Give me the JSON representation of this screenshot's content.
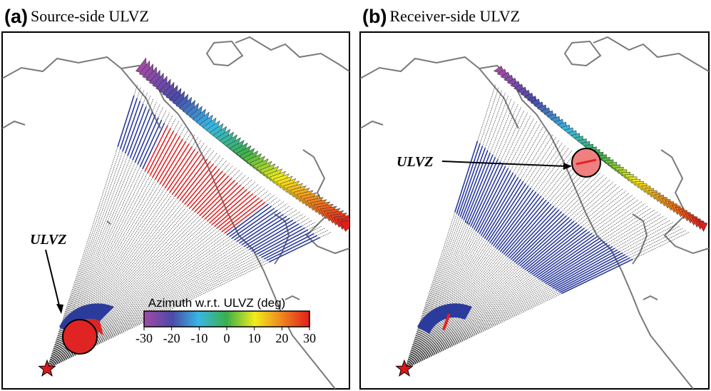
{
  "panels": [
    {
      "letter": "(a)",
      "caption": "Source-side ULVZ",
      "ulvz_label": "ULVZ"
    },
    {
      "letter": "(b)",
      "caption": "Receiver-side ULVZ",
      "ulvz_label": "ULVZ"
    }
  ],
  "colorbar": {
    "title": "Azimuth w.r.t. ULVZ (deg)",
    "ticks": [
      "-30",
      "-20",
      "-10",
      "0",
      "10",
      "20",
      "30"
    ],
    "colormap": [
      "#a24aa6",
      "#4b4aa8",
      "#38b7e4",
      "#3bb04a",
      "#f2ec1c",
      "#f0861e",
      "#e21d1d"
    ]
  },
  "colors": {
    "coastline": "#7a7a7a",
    "ray_paths": "#333333",
    "ray_highlight_blue": "#2b3b9c",
    "ray_highlight_red": "#e02424",
    "source_star": "#d7191c"
  },
  "icons": {
    "source": "star-icon",
    "ulvz": "circle-icon"
  }
}
